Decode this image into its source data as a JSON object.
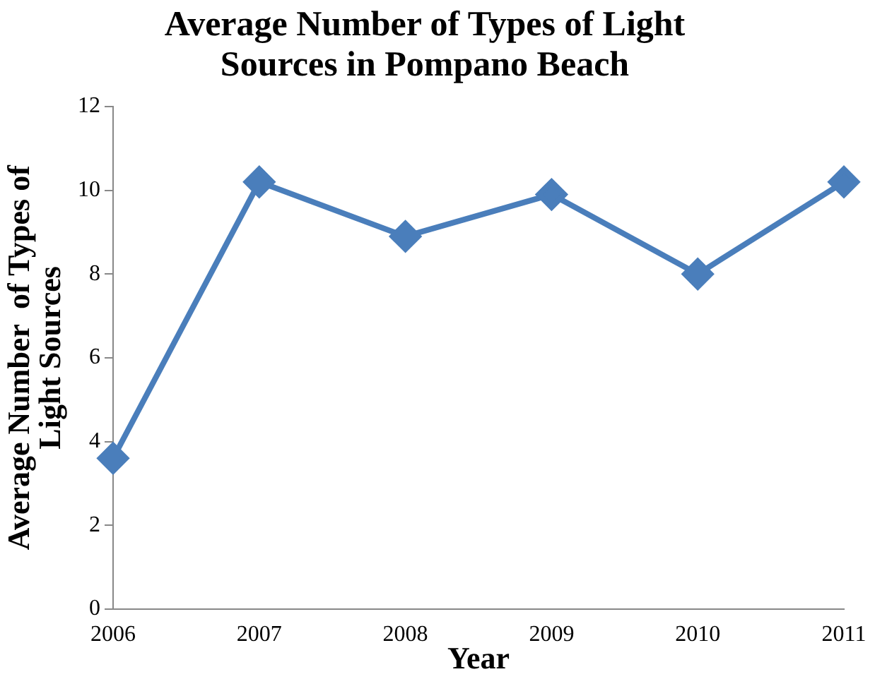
{
  "chart_data": {
    "type": "line",
    "title": "Average Number of Types of Light Sources in Pompano Beach",
    "xlabel": "Year",
    "ylabel": "Average Number  of Types of Light Sources",
    "categories": [
      "2006",
      "2007",
      "2008",
      "2009",
      "2010",
      "2011"
    ],
    "series": [
      {
        "color": "#4a7ebb",
        "values": [
          3.6,
          10.2,
          8.9,
          9.9,
          8.0,
          10.2
        ]
      }
    ],
    "ylim": [
      0,
      12
    ],
    "yticks": [
      0,
      2,
      4,
      6,
      8,
      10,
      12
    ],
    "grid": false,
    "legend": false,
    "marker": "diamond",
    "line_style": "solid"
  }
}
